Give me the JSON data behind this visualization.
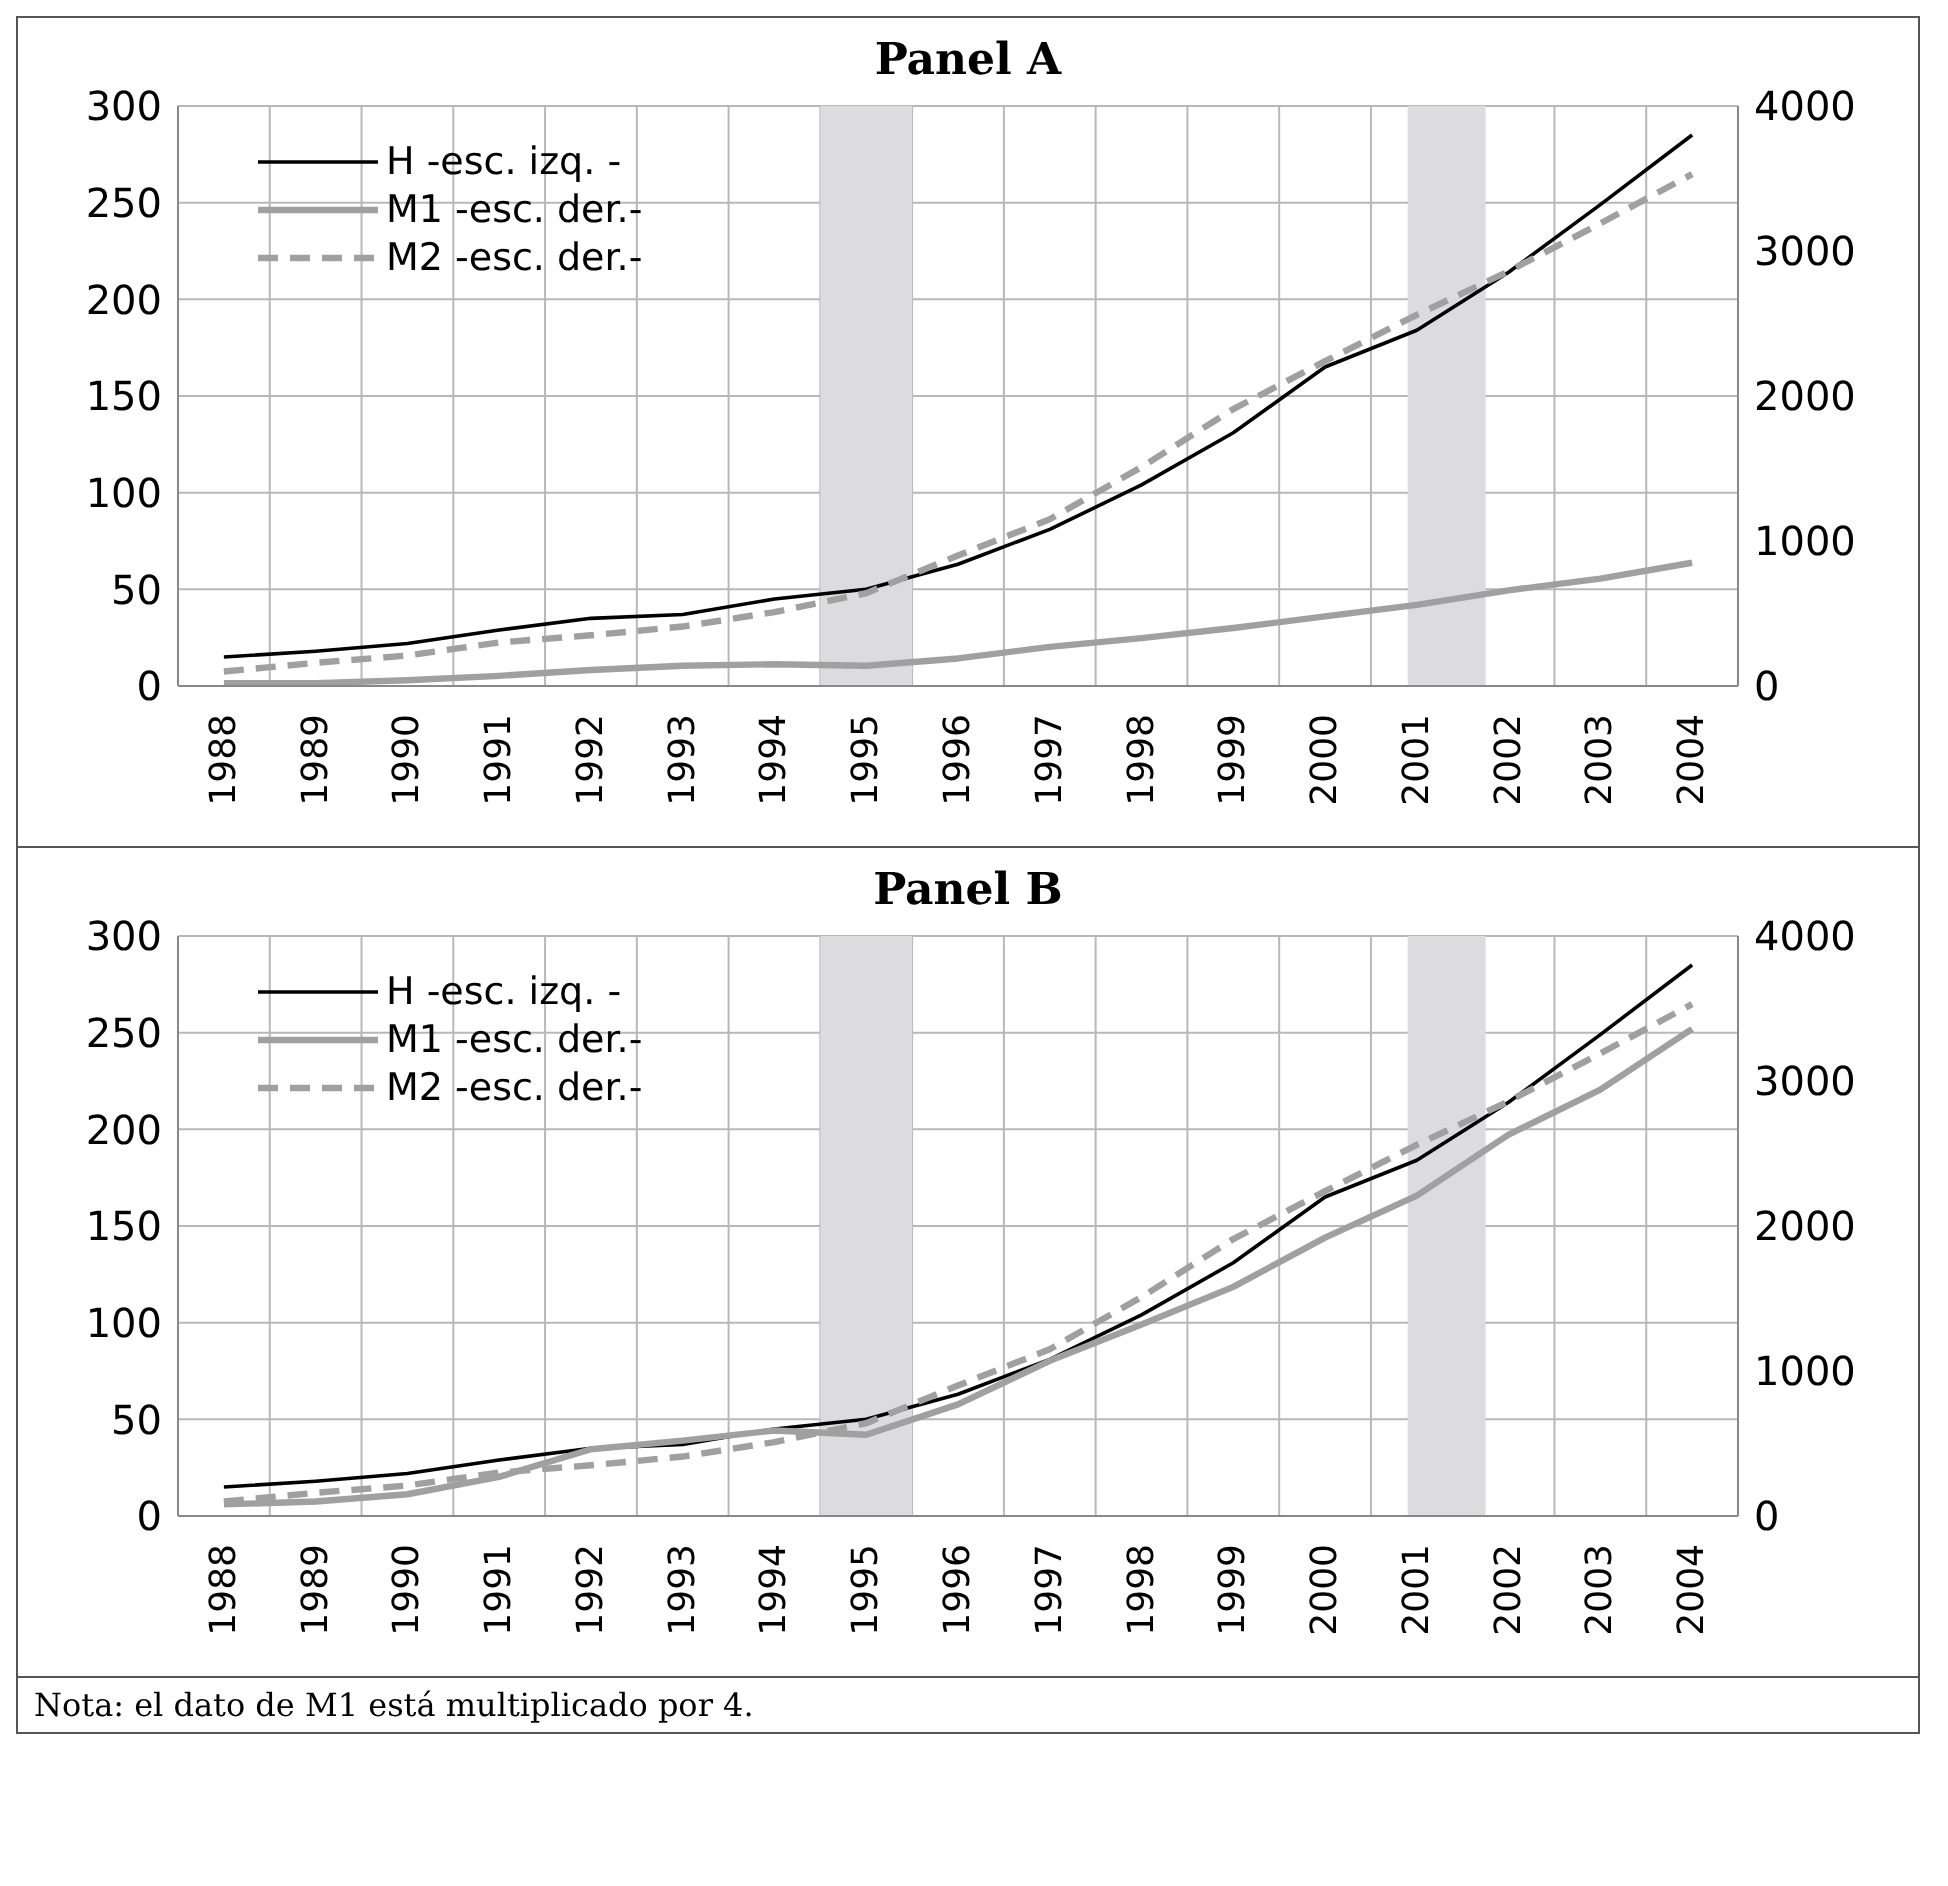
{
  "chart_data": [
    {
      "type": "line",
      "title": "Panel A",
      "x": [
        1988,
        1989,
        1990,
        1991,
        1992,
        1993,
        1994,
        1995,
        1996,
        1997,
        1998,
        1999,
        2000,
        2001,
        2002,
        2003,
        2004
      ],
      "xlim": [
        1987.5,
        2004.5
      ],
      "xticks": [
        1988,
        1989,
        1990,
        1991,
        1992,
        1993,
        1994,
        1995,
        1996,
        1997,
        1998,
        1999,
        2000,
        2001,
        2002,
        2003,
        2004
      ],
      "ylim": [
        0,
        300
      ],
      "yticks": [
        0,
        50,
        100,
        150,
        200,
        250,
        300
      ],
      "y2lim": [
        0,
        4000
      ],
      "y2ticks": [
        0,
        1000,
        2000,
        3000,
        4000
      ],
      "grid": true,
      "legend": "top left",
      "series": [
        {
          "name": "H -esc. izq. -",
          "color": "#000000",
          "values": [
            15,
            18,
            22,
            29,
            35,
            37,
            45,
            50,
            63,
            81,
            104,
            131,
            165,
            184,
            214,
            249,
            285
          ]
        },
        {
          "name": "M1 -esc. der.-",
          "color": "#a0a0a0",
          "axis": "y2",
          "values": [
            20,
            20,
            40,
            70,
            110,
            140,
            150,
            140,
            190,
            270,
            330,
            400,
            480,
            560,
            660,
            740,
            850
          ]
        },
        {
          "name": "M2 -esc. der.-",
          "color": "#a0a0a0",
          "axis": "y2",
          "line_style": "dashed",
          "values": [
            100,
            160,
            210,
            300,
            350,
            410,
            510,
            640,
            900,
            1150,
            1510,
            1910,
            2240,
            2560,
            2860,
            3190,
            3530
          ]
        }
      ],
      "bands": [
        {
          "axis": "x",
          "from": 1994.5,
          "to": 1995.5,
          "color": "#dcdcde"
        },
        {
          "axis": "x",
          "from": 2000.9,
          "to": 2001.75,
          "color": "#dcdcde"
        }
      ]
    },
    {
      "type": "line",
      "title": "Panel B",
      "x": [
        1988,
        1989,
        1990,
        1991,
        1992,
        1993,
        1994,
        1995,
        1996,
        1997,
        1998,
        1999,
        2000,
        2001,
        2002,
        2003,
        2004
      ],
      "xlim": [
        1987.5,
        2004.5
      ],
      "xticks": [
        1988,
        1989,
        1990,
        1991,
        1992,
        1993,
        1994,
        1995,
        1996,
        1997,
        1998,
        1999,
        2000,
        2001,
        2002,
        2003,
        2004
      ],
      "ylim": [
        0,
        300
      ],
      "yticks": [
        0,
        50,
        100,
        150,
        200,
        250,
        300
      ],
      "y2lim": [
        0,
        4000
      ],
      "y2ticks": [
        0,
        1000,
        2000,
        3000,
        4000
      ],
      "grid": true,
      "legend": "top left",
      "series": [
        {
          "name": "H -esc. izq. -",
          "color": "#000000",
          "values": [
            15,
            18,
            22,
            29,
            35,
            37,
            45,
            50,
            63,
            81,
            104,
            131,
            165,
            184,
            214,
            249,
            285
          ]
        },
        {
          "name": "M1 -esc. der.-",
          "color": "#a0a0a0",
          "axis": "y2",
          "values": [
            80,
            100,
            150,
            270,
            460,
            520,
            590,
            560,
            770,
            1070,
            1320,
            1580,
            1920,
            2210,
            2630,
            2940,
            3360
          ]
        },
        {
          "name": "M2 -esc. der.-",
          "color": "#a0a0a0",
          "axis": "y2",
          "line_style": "dashed",
          "values": [
            100,
            160,
            210,
            300,
            350,
            410,
            510,
            640,
            900,
            1150,
            1510,
            1910,
            2240,
            2560,
            2860,
            3190,
            3530
          ]
        }
      ],
      "bands": [
        {
          "axis": "x",
          "from": 1994.5,
          "to": 1995.5,
          "color": "#dcdcde"
        },
        {
          "axis": "x",
          "from": 2000.9,
          "to": 2001.75,
          "color": "#dcdcde"
        }
      ],
      "annotations": [
        "Nota: el dato de M1 está multiplicado por 4."
      ]
    }
  ]
}
